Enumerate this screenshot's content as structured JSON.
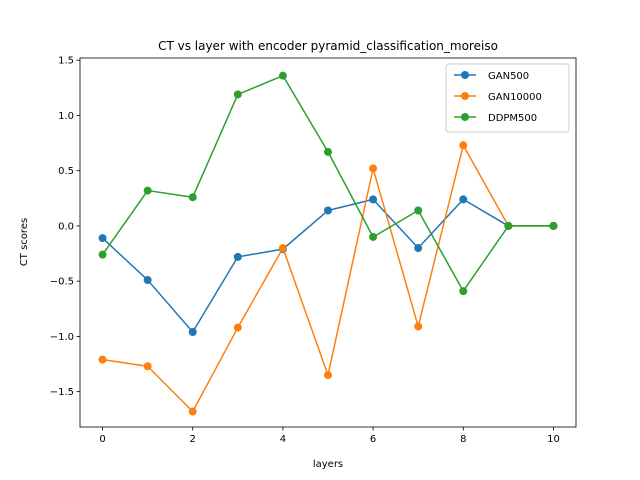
{
  "chart_data": {
    "type": "line",
    "title": "CT vs layer with encoder pyramid_classification_moreiso",
    "xlabel": "layers",
    "ylabel": "CT scores",
    "xlim": [
      -0.5,
      10.5
    ],
    "ylim": [
      -1.82,
      1.52
    ],
    "xticks": [
      0,
      2,
      4,
      6,
      8,
      10
    ],
    "yticks": [
      -1.5,
      -1.0,
      -0.5,
      0.0,
      0.5,
      1.0,
      1.5
    ],
    "ytick_labels": [
      "−1.5",
      "−1.0",
      "−0.5",
      "0.0",
      "0.5",
      "1.0",
      "1.5"
    ],
    "xtick_labels": [
      "0",
      "2",
      "4",
      "6",
      "8",
      "10"
    ],
    "legend_position": "top-right",
    "grid": false,
    "x": [
      0,
      1,
      2,
      3,
      4,
      5,
      6,
      7,
      8,
      9,
      10
    ],
    "series": [
      {
        "name": "GAN500",
        "color": "#1f77b4",
        "values": [
          -0.11,
          -0.49,
          -0.96,
          -0.28,
          -0.21,
          0.14,
          0.24,
          -0.2,
          0.24,
          0.0,
          0.0
        ]
      },
      {
        "name": "GAN10000",
        "color": "#ff7f0e",
        "values": [
          -1.21,
          -1.27,
          -1.68,
          -0.92,
          -0.2,
          -1.35,
          0.52,
          -0.91,
          0.73,
          0.0,
          0.0
        ]
      },
      {
        "name": "DDPM500",
        "color": "#2ca02c",
        "values": [
          -0.26,
          0.32,
          0.26,
          1.19,
          1.36,
          0.67,
          -0.1,
          0.14,
          -0.59,
          0.0,
          0.0
        ]
      }
    ]
  }
}
